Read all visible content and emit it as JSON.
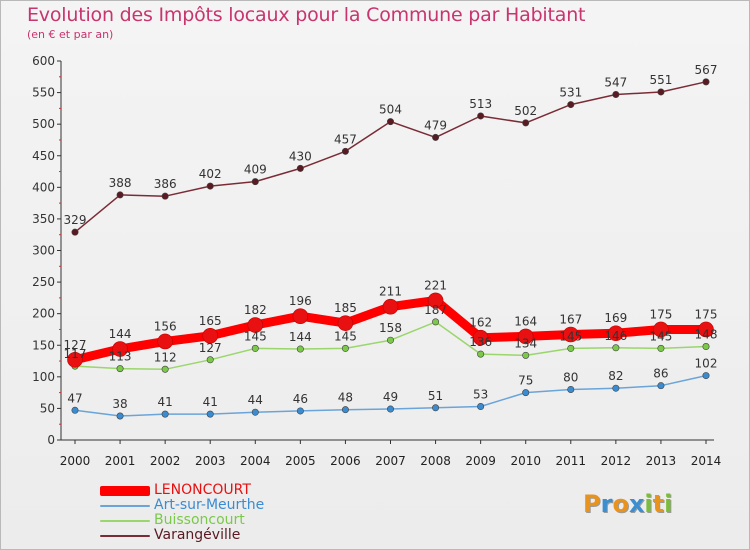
{
  "header": {
    "title": "Evolution des Impôts locaux pour la Commune par Habitant",
    "subtitle": "(en € et par an)"
  },
  "logo": {
    "text": "Proxiti",
    "letters": [
      {
        "ch": "P",
        "color": "#e8931e"
      },
      {
        "ch": "r",
        "color": "#3b8fd1"
      },
      {
        "ch": "o",
        "color": "#e8931e"
      },
      {
        "ch": "x",
        "color": "#3b8fd1"
      },
      {
        "ch": "i",
        "color": "#7bbd3a"
      },
      {
        "ch": "t",
        "color": "#e8931e"
      },
      {
        "ch": "i",
        "color": "#7bbd3a"
      }
    ]
  },
  "chart_data": {
    "type": "line",
    "title": "Evolution des Impôts locaux pour la Commune par Habitant",
    "subtitle": "(en € et par an)",
    "xlabel": "",
    "ylabel": "",
    "x": [
      2000,
      2001,
      2002,
      2003,
      2004,
      2005,
      2006,
      2007,
      2008,
      2009,
      2010,
      2011,
      2012,
      2013,
      2014
    ],
    "ylim": [
      0,
      600
    ],
    "yticks": [
      0,
      50,
      100,
      150,
      200,
      250,
      300,
      350,
      400,
      450,
      500,
      550,
      600
    ],
    "grid": false,
    "legend_position": "bottom-left",
    "series": [
      {
        "name": "LENONCOURT",
        "color": "#ff0000",
        "marker_color": "#e81010",
        "bold": true,
        "values": [
          127,
          144,
          156,
          165,
          182,
          196,
          185,
          211,
          221,
          162,
          164,
          167,
          169,
          175,
          175
        ],
        "labels": [
          "127",
          "144",
          "156",
          "165",
          "182",
          "196",
          "185",
          "211",
          "221",
          "162",
          "164",
          "167",
          "169",
          "175",
          "175"
        ]
      },
      {
        "name": "Art-sur-Meurthe",
        "color": "#6aa4d8",
        "marker_color": "#3b8bd0",
        "bold": false,
        "values": [
          47,
          38,
          41,
          41,
          44,
          46,
          48,
          49,
          51,
          53,
          75,
          80,
          82,
          86,
          102
        ],
        "labels": [
          "47",
          "38",
          "41",
          "41",
          "44",
          "46",
          "48",
          "49",
          "51",
          "53",
          "75",
          "80",
          "82",
          "86",
          "102"
        ]
      },
      {
        "name": "Buissoncourt",
        "color": "#9ad66b",
        "marker_color": "#7bc84a",
        "bold": false,
        "values": [
          117,
          113,
          112,
          127,
          145,
          144,
          145,
          158,
          187,
          136,
          134,
          145,
          146,
          145,
          148
        ],
        "labels": [
          "117",
          "113",
          "112",
          "127",
          "145",
          "144",
          "145",
          "158",
          "187",
          "136",
          "134",
          "145",
          "146",
          "145",
          "148"
        ]
      },
      {
        "name": "Varangéville",
        "color": "#7a2c36",
        "marker_color": "#5a1a22",
        "bold": false,
        "values": [
          329,
          388,
          386,
          402,
          409,
          430,
          457,
          504,
          479,
          513,
          502,
          531,
          547,
          551,
          567
        ],
        "labels": [
          "329",
          "388",
          "386",
          "402",
          "409",
          "430",
          "457",
          "504",
          "479",
          "513",
          "502",
          "531",
          "547",
          "551",
          "567"
        ]
      }
    ]
  }
}
